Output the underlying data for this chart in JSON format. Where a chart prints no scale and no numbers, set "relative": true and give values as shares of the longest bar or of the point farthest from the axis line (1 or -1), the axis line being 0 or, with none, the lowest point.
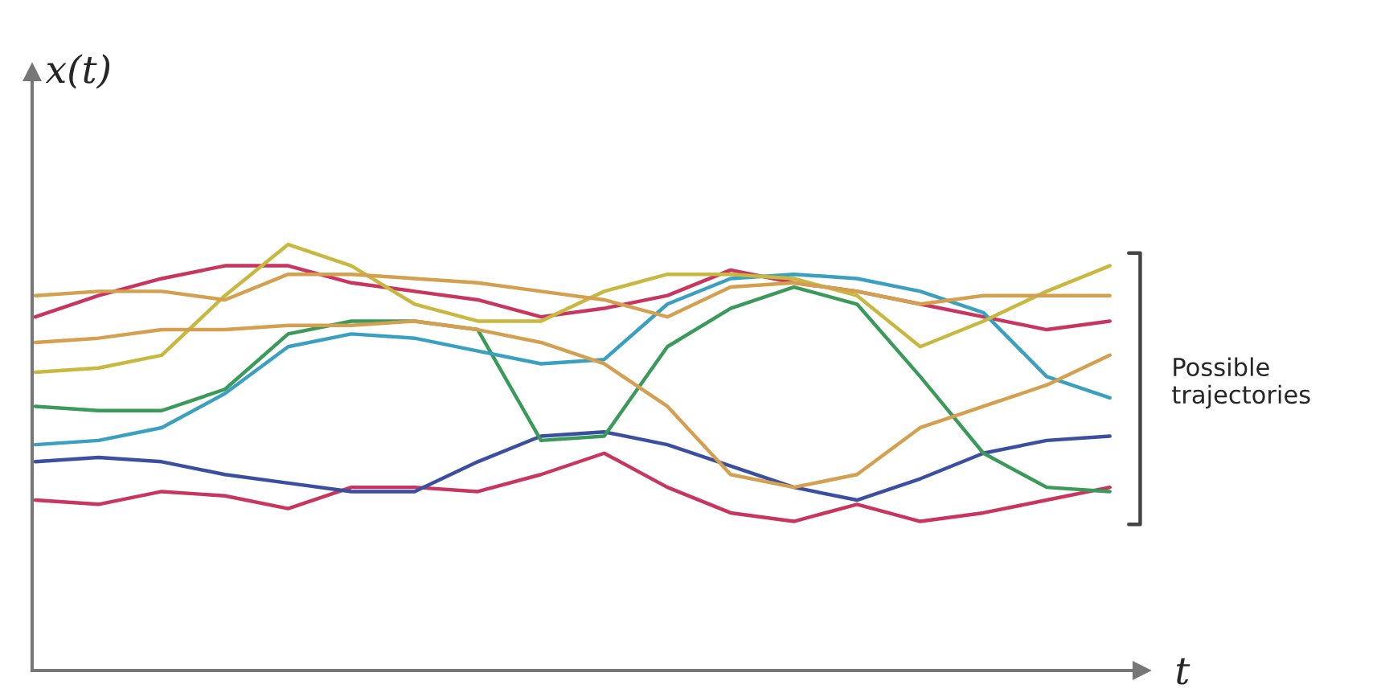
{
  "chart_data": {
    "type": "line",
    "relative": true,
    "xlabel": "t",
    "ylabel": "x(t)",
    "annotations": [
      "Possible trajectories"
    ],
    "legend": false,
    "marker": "none",
    "line_style": "solid",
    "categories": [
      null,
      null,
      null,
      null,
      null,
      null,
      null,
      null,
      null,
      null,
      null,
      null,
      null,
      null,
      null,
      null,
      null,
      null
    ],
    "series": [
      {
        "color": "#c8365f",
        "values": [
          0.83,
          0.88,
          0.92,
          0.95,
          0.95,
          0.91,
          0.89,
          0.87,
          0.83,
          0.85,
          0.88,
          0.94,
          0.91,
          0.89,
          0.86,
          0.83,
          0.8,
          0.82
        ]
      },
      {
        "color": "#c8365f",
        "values": [
          0.4,
          0.39,
          0.42,
          0.41,
          0.38,
          0.43,
          0.43,
          0.42,
          0.46,
          0.51,
          0.43,
          0.37,
          0.35,
          0.39,
          0.35,
          0.37,
          0.4,
          0.43
        ]
      },
      {
        "color": "#3b4fa0",
        "values": [
          0.49,
          0.5,
          0.49,
          0.46,
          0.44,
          0.42,
          0.42,
          0.49,
          0.55,
          0.56,
          0.53,
          0.48,
          0.43,
          0.4,
          0.45,
          0.51,
          0.54,
          0.55
        ]
      },
      {
        "color": "#3a9a5a",
        "values": [
          0.62,
          0.61,
          0.61,
          0.66,
          0.79,
          0.82,
          0.82,
          0.8,
          0.54,
          0.55,
          0.76,
          0.85,
          0.9,
          0.86,
          0.69,
          0.51,
          0.43,
          0.42
        ]
      },
      {
        "color": "#3aa0c0",
        "values": [
          0.53,
          0.54,
          0.57,
          0.65,
          0.76,
          0.79,
          0.78,
          0.75,
          0.72,
          0.73,
          0.86,
          0.92,
          0.93,
          0.92,
          0.89,
          0.84,
          0.69,
          0.64
        ]
      },
      {
        "color": "#c8b840",
        "values": [
          0.7,
          0.71,
          0.74,
          0.88,
          1.0,
          0.95,
          0.86,
          0.82,
          0.82,
          0.89,
          0.93,
          0.93,
          0.92,
          0.88,
          0.76,
          0.82,
          0.89,
          0.95
        ]
      },
      {
        "color": "#d4a050",
        "values": [
          0.88,
          0.89,
          0.89,
          0.87,
          0.93,
          0.93,
          0.92,
          0.91,
          0.89,
          0.87,
          0.83,
          0.9,
          0.91,
          0.89,
          0.86,
          0.88,
          0.88,
          0.88
        ]
      },
      {
        "color": "#d4a050",
        "values": [
          0.77,
          0.78,
          0.8,
          0.8,
          0.81,
          0.81,
          0.82,
          0.8,
          0.77,
          0.72,
          0.62,
          0.46,
          0.43,
          0.46,
          0.57,
          0.62,
          0.67,
          0.74
        ]
      }
    ]
  }
}
